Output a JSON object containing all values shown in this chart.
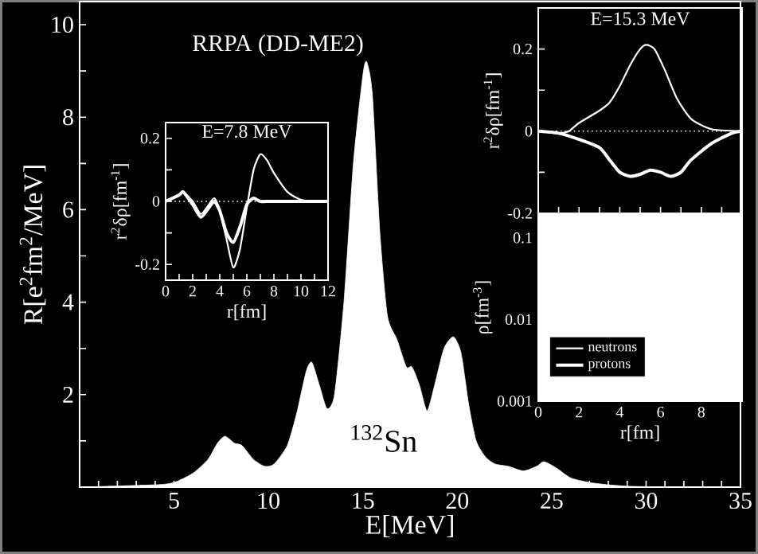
{
  "chart_data": [
    {
      "type": "area",
      "xlabel": "E[MeV]",
      "ylabel": "R[e$^{2}$fm$^{2}$/MeV]",
      "annotations": [
        "RRPA (DD-ME2)",
        "$^{132}$Sn"
      ],
      "xlim": [
        0,
        35
      ],
      "ylim": [
        0,
        10.5
      ],
      "xticks": [
        {
          "value": 1,
          "label": null
        },
        {
          "value": 2,
          "label": null
        },
        {
          "value": 3,
          "label": null
        },
        {
          "value": 4,
          "label": null
        },
        5,
        {
          "value": 6,
          "label": null
        },
        {
          "value": 7,
          "label": null
        },
        {
          "value": 8,
          "label": null
        },
        {
          "value": 9,
          "label": null
        },
        10,
        {
          "value": 11,
          "label": null
        },
        {
          "value": 12,
          "label": null
        },
        {
          "value": 13,
          "label": null
        },
        {
          "value": 14,
          "label": null
        },
        15,
        {
          "value": 16,
          "label": null
        },
        {
          "value": 17,
          "label": null
        },
        {
          "value": 18,
          "label": null
        },
        {
          "value": 19,
          "label": null
        },
        20,
        {
          "value": 21,
          "label": null
        },
        {
          "value": 22,
          "label": null
        },
        {
          "value": 23,
          "label": null
        },
        {
          "value": 24,
          "label": null
        },
        25,
        {
          "value": 26,
          "label": null
        },
        {
          "value": 27,
          "label": null
        },
        {
          "value": 28,
          "label": null
        },
        {
          "value": 29,
          "label": null
        },
        30,
        {
          "value": 31,
          "label": null
        },
        {
          "value": 32,
          "label": null
        },
        {
          "value": 33,
          "label": null
        },
        {
          "value": 34,
          "label": null
        },
        35
      ],
      "yticks": [
        {
          "value": 1,
          "label": null
        },
        2,
        {
          "value": 3,
          "label": null
        },
        4,
        {
          "value": 5,
          "label": null
        },
        6,
        {
          "value": 7,
          "label": null
        },
        8,
        {
          "value": 9,
          "label": null
        },
        10
      ],
      "series": [
        {
          "color": "#ffffff",
          "x": [
            0,
            4,
            5,
            6,
            6.8,
            7.3,
            7.7,
            8.2,
            8.6,
            9.2,
            9.8,
            10.3,
            11,
            11.5,
            12,
            12.3,
            12.7,
            13.1,
            13.5,
            14,
            14.5,
            15,
            15.2,
            15.5,
            15.9,
            16.3,
            16.8,
            17.3,
            17.6,
            18,
            18.4,
            18.8,
            19.3,
            19.8,
            20.2,
            20.6,
            21,
            21.5,
            22,
            22.7,
            23.5,
            24.2,
            24.6,
            25.3,
            26,
            27,
            28,
            29,
            30,
            35
          ],
          "values": [
            0,
            0.05,
            0.1,
            0.3,
            0.6,
            0.95,
            1.1,
            0.95,
            0.9,
            0.6,
            0.45,
            0.5,
            0.9,
            1.6,
            2.5,
            2.7,
            2.2,
            1.7,
            2.0,
            4.0,
            7.0,
            8.9,
            9.2,
            8.5,
            5.5,
            3.7,
            3.2,
            2.6,
            2.6,
            2.2,
            1.65,
            2.2,
            3.0,
            3.25,
            2.9,
            1.8,
            1.0,
            0.65,
            0.5,
            0.45,
            0.35,
            0.45,
            0.55,
            0.4,
            0.2,
            0.1,
            0.05,
            0.02,
            0.01,
            0
          ]
        }
      ]
    },
    {
      "type": "line",
      "title": "E=7.8 MeV",
      "xlabel": "r[fm]",
      "ylabel": "r$^{2}$δρ[fm$^{-1}$]",
      "xlim": [
        0,
        12
      ],
      "ylim": [
        -0.25,
        0.25
      ],
      "xticks": [
        0,
        {
          "value": 1,
          "label": null
        },
        2,
        {
          "value": 3,
          "label": null
        },
        4,
        {
          "value": 5,
          "label": null
        },
        6,
        {
          "value": 7,
          "label": null
        },
        8,
        {
          "value": 9,
          "label": null
        },
        10,
        {
          "value": 11,
          "label": null
        },
        12
      ],
      "yticks": [
        -0.2,
        {
          "value": -0.1,
          "label": null
        },
        0,
        {
          "value": 0.1,
          "label": null
        },
        0.2
      ],
      "ref_lines": [
        {
          "axis": "y",
          "value": 0,
          "color": "#ffffff",
          "line_style": "dotted"
        }
      ],
      "series": [
        {
          "color": "#ffffff",
          "x": [
            0,
            1,
            1.3,
            2,
            2.6,
            3.2,
            3.6,
            4,
            4.5,
            5,
            5.5,
            6,
            6.5,
            7,
            7.5,
            8,
            9,
            10,
            11,
            12
          ],
          "values": [
            0,
            0.02,
            0.03,
            0,
            -0.04,
            -0.01,
            0.01,
            -0.03,
            -0.12,
            -0.21,
            -0.15,
            -0.02,
            0.1,
            0.15,
            0.13,
            0.09,
            0.03,
            0.005,
            0,
            0
          ]
        },
        {
          "color": "#ffffff",
          "x": [
            0,
            1,
            1.3,
            2,
            2.6,
            3.2,
            3.6,
            4,
            4.5,
            5,
            5.5,
            6,
            6.5,
            7,
            8,
            12
          ],
          "values": [
            0,
            0.02,
            0.03,
            -0.01,
            -0.05,
            -0.02,
            0,
            -0.03,
            -0.1,
            -0.13,
            -0.08,
            -0.01,
            0.01,
            0,
            0,
            0
          ]
        }
      ]
    },
    {
      "type": "line",
      "title": "E=15.3 MeV",
      "ylabel": "r$^{2}$δρ[fm$^{-1}$]",
      "tick_labels": "y",
      "legend": "bottom left",
      "xlim": [
        0,
        10
      ],
      "ylim": [
        -0.2,
        0.3
      ],
      "xticks": [
        0,
        1,
        2,
        3,
        4,
        5,
        6,
        7,
        8,
        9,
        10
      ],
      "yticks": [
        -0.2,
        {
          "value": -0.1,
          "label": null
        },
        0,
        {
          "value": 0.1,
          "label": null
        },
        0.2
      ],
      "ref_lines": [
        {
          "axis": "y",
          "value": 0,
          "color": "#ffffff",
          "line_style": "dotted"
        }
      ],
      "series": [
        {
          "name": "neutrons",
          "color": "#ffffff",
          "x": [
            0,
            1,
            1.5,
            2,
            3,
            3.5,
            4,
            4.5,
            5,
            5.3,
            5.7,
            6.2,
            6.8,
            7.5,
            8.5,
            10
          ],
          "values": [
            0,
            -0.005,
            0,
            0.02,
            0.05,
            0.07,
            0.11,
            0.16,
            0.2,
            0.21,
            0.2,
            0.15,
            0.08,
            0.03,
            0.005,
            0
          ]
        },
        {
          "name": "protons",
          "color": "#ffffff",
          "x": [
            0,
            1,
            2,
            3,
            3.5,
            4,
            4.5,
            5,
            5.5,
            6,
            6.5,
            7,
            7.5,
            8.5,
            9.5,
            10
          ],
          "values": [
            0,
            -0.005,
            -0.02,
            -0.04,
            -0.07,
            -0.1,
            -0.11,
            -0.105,
            -0.095,
            -0.1,
            -0.11,
            -0.1,
            -0.07,
            -0.03,
            -0.005,
            0
          ]
        }
      ]
    },
    {
      "type": "line",
      "xlabel": "r[fm]",
      "ylabel": "ρ[fm$^{-3}$]",
      "log": "y",
      "xlim": [
        0,
        10
      ],
      "ylim": [
        0.001,
        0.2
      ],
      "xticks": [
        0,
        {
          "value": 1,
          "label": null
        },
        2,
        {
          "value": 3,
          "label": null
        },
        4,
        {
          "value": 5,
          "label": null
        },
        6,
        {
          "value": 7,
          "label": null
        },
        8,
        {
          "value": 9,
          "label": null
        }
      ],
      "yticks": [
        0.001,
        0.01,
        0.1
      ]
    }
  ]
}
